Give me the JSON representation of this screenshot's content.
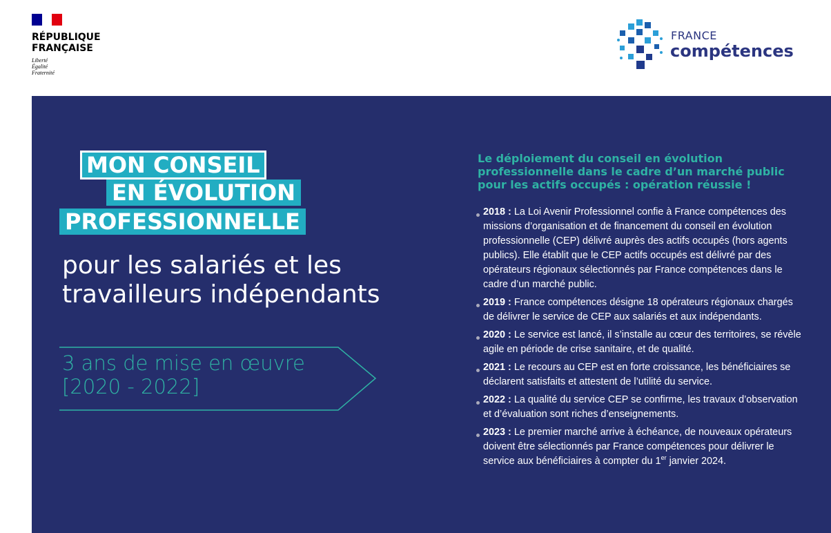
{
  "header": {
    "republique": {
      "name": [
        "RÉPUBLIQUE",
        "FRANÇAISE"
      ],
      "motto": [
        "Liberté",
        "Égalité",
        "Fraternité"
      ]
    },
    "logo": {
      "line1": "FRANCE",
      "line2": "compétences"
    }
  },
  "title": {
    "lines": [
      "MON CONSEIL",
      "EN ÉVOLUTION",
      "PROFESSIONNELLE"
    ],
    "subtitle": [
      "pour les salariés et les",
      "travailleurs indépendants"
    ],
    "period": [
      "3 ans de mise en œuvre",
      "[2020 - 2022]"
    ]
  },
  "content": {
    "heading": [
      "Le déploiement du conseil en évolution",
      "professionnelle dans le cadre d’un marché public",
      "pour les actifs occupés : opération réussie !"
    ],
    "items": [
      {
        "year": "2018 :",
        "text": "La Loi Avenir Professionnel confie à France compétences des missions d’organisation et de financement du conseil en évolution professionnelle (CEP) délivré auprès des actifs occupés (hors agents publics). Elle établit que le CEP actifs occupés est délivré par des opérateurs régionaux sélectionnés par France compétences dans le cadre d’un marché public."
      },
      {
        "year": "2019 :",
        "text": "France compétences désigne 18 opérateurs régionaux chargés de délivrer le service de CEP aux salariés et aux indépendants."
      },
      {
        "year": "2020 :",
        "text": "Le service est lancé, il s’installe au cœur des territoires, se révèle agile en période de crise sanitaire, et de qualité."
      },
      {
        "year": "2021 :",
        "text": "Le recours au CEP est en forte croissance, les bénéficiaires se déclarent satisfaits et attestent de l’utilité du service."
      },
      {
        "year": "2022 :",
        "text": "La qualité du service CEP se confirme, les travaux d’observation et d’évaluation sont riches d’enseignements."
      },
      {
        "year": "2023 :",
        "text": "Le premier marché arrive à échéance, de nouveaux opérateurs doivent être sélectionnés par France compétences pour délivrer le service aux bénéficiaires à compter du 1",
        "sup": "er",
        "text_after": " janvier 2024."
      }
    ]
  }
}
